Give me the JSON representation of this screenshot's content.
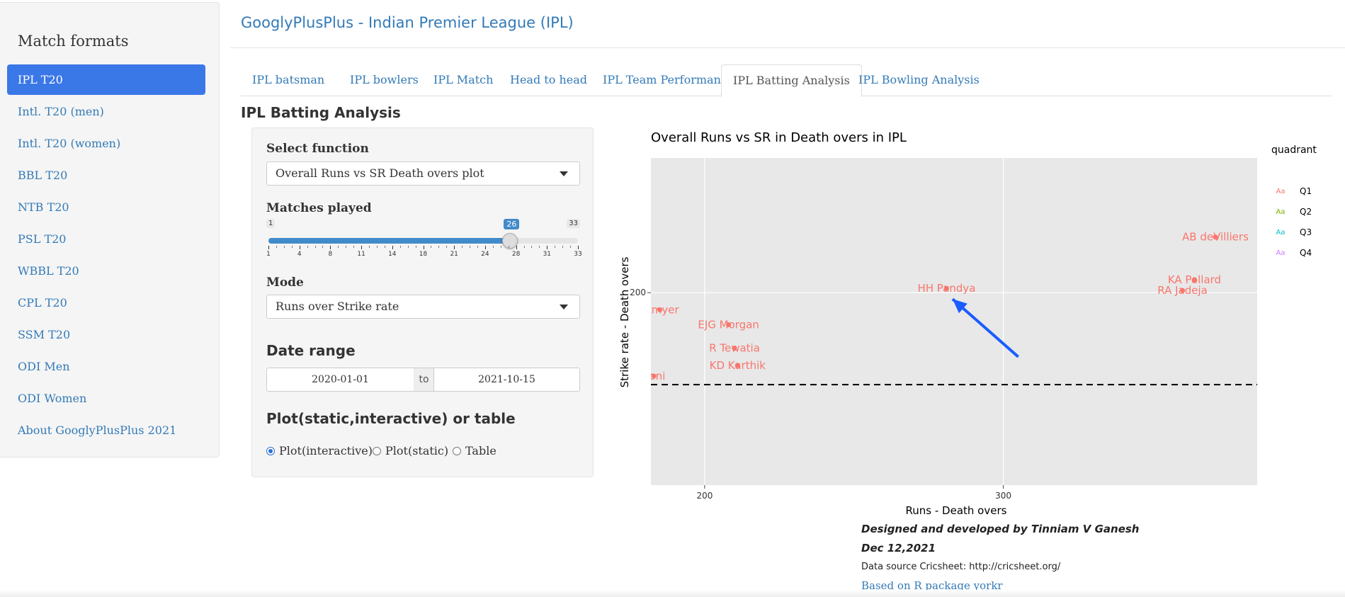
{
  "sidebar": {
    "title": "Match formats",
    "items": [
      {
        "label": "IPL T20",
        "active": true
      },
      {
        "label": "Intl. T20 (men)"
      },
      {
        "label": "Intl. T20 (women)"
      },
      {
        "label": "BBL T20"
      },
      {
        "label": "NTB T20"
      },
      {
        "label": "PSL T20"
      },
      {
        "label": "WBBL T20"
      },
      {
        "label": "CPL T20"
      },
      {
        "label": "SSM T20"
      },
      {
        "label": "ODI Men"
      },
      {
        "label": "ODI Women"
      },
      {
        "label": "About GooglyPlusPlus 2021"
      }
    ]
  },
  "header": {
    "title": "GooglyPlusPlus - Indian Premier League (IPL)"
  },
  "tabs": [
    {
      "label": "IPL batsman"
    },
    {
      "label": "IPL bowlers"
    },
    {
      "label": "IPL Match"
    },
    {
      "label": "Head to head"
    },
    {
      "label": "IPL Team Performance"
    },
    {
      "label": "IPL Batting Analysis",
      "active": true
    },
    {
      "label": "IPL Bowling Analysis"
    }
  ],
  "section_title": "IPL Batting Analysis",
  "controls": {
    "function": {
      "label": "Select function",
      "value": "Overall Runs vs SR Death overs plot"
    },
    "matches": {
      "label": "Matches played",
      "min": 1,
      "max": 33,
      "value": 26,
      "tick_labels": [
        "1",
        "4",
        "8",
        "11",
        "14",
        "18",
        "21",
        "24",
        "28",
        "31",
        "33"
      ]
    },
    "mode": {
      "label": "Mode",
      "value": "Runs over Strike rate"
    },
    "date_range": {
      "label": "Date range",
      "start": "2020-01-01",
      "separator": "to",
      "end": "2021-10-15"
    },
    "output": {
      "label": "Plot(static,interactive) or table",
      "options": [
        {
          "label": "Plot(interactive)",
          "checked": true
        },
        {
          "label": "Plot(static)",
          "checked": false
        },
        {
          "label": "Table",
          "checked": false
        }
      ]
    }
  },
  "chart_data": {
    "type": "scatter",
    "title": "Overall Runs vs SR in Death overs in IPL",
    "xlabel": "Runs - Death overs",
    "ylabel": "Strike rate - Death overs",
    "xlim": [
      182,
      385
    ],
    "ylim": [
      110,
      263
    ],
    "x_ticks": [
      200,
      300
    ],
    "y_ticks": [
      200
    ],
    "grid": true,
    "hline": {
      "y": 157,
      "style": "dashed"
    },
    "legend": {
      "title": "quadrant",
      "position": "right",
      "entries": [
        {
          "name": "Q1",
          "color": "#F8766D"
        },
        {
          "name": "Q2",
          "color": "#7CAE00"
        },
        {
          "name": "Q3",
          "color": "#00BFC4"
        },
        {
          "name": "Q4",
          "color": "#C77CFF"
        }
      ]
    },
    "points": [
      {
        "label": "AB deVilliers",
        "x": 371,
        "y": 226,
        "quadrant": "Q1"
      },
      {
        "label": "KA Pollard",
        "x": 364,
        "y": 206,
        "quadrant": "Q1"
      },
      {
        "label": "RA Jadeja",
        "x": 360,
        "y": 201,
        "quadrant": "Q1"
      },
      {
        "label": "HH Pandya",
        "x": 281,
        "y": 202,
        "quadrant": "Q1"
      },
      {
        "label": "Hetmyer",
        "x": 185,
        "y": 192,
        "quadrant": "Q1",
        "display": "etmyer"
      },
      {
        "label": "EJG Morgan",
        "x": 208,
        "y": 185,
        "quadrant": "Q1"
      },
      {
        "label": "R Tewatia",
        "x": 210,
        "y": 174,
        "quadrant": "Q1"
      },
      {
        "label": "KD Karthik",
        "x": 211,
        "y": 166,
        "quadrant": "Q1"
      },
      {
        "label": "MS Dhoni",
        "x": 183,
        "y": 161,
        "quadrant": "Q1",
        "display": "honi"
      }
    ],
    "arrow": {
      "color": "#1a5cff",
      "from": {
        "x": 305,
        "y": 170
      },
      "to": {
        "x": 283,
        "y": 197
      }
    }
  },
  "credits": {
    "designer": "Designed and developed by Tinniam V Ganesh",
    "date": "Dec 12,2021",
    "source": "Data source Cricsheet: http://cricsheet.org/",
    "package": "Based on R package yorkr"
  }
}
